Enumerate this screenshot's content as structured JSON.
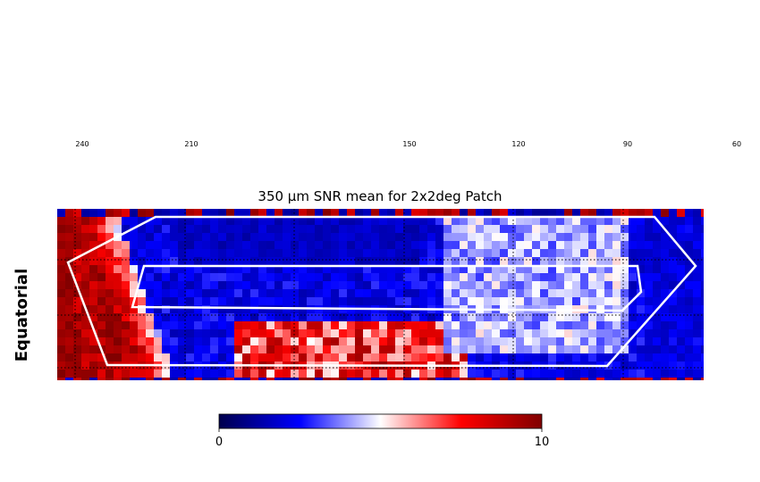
{
  "chart_data": {
    "type": "heatmap",
    "title": "350 μm SNR mean for 2x2deg Patch",
    "side_label": "Equatorial",
    "ra_ticks": [
      {
        "label": "240",
        "value": 240
      },
      {
        "label": "210",
        "value": 210
      },
      {
        "label": "150",
        "value": 150
      },
      {
        "label": "120",
        "value": 120
      },
      {
        "label": "90",
        "value": 90
      },
      {
        "label": "60",
        "value": 60
      }
    ],
    "colorbar": {
      "min": 0,
      "max": 10,
      "min_label": "0",
      "max_label": "10",
      "colormap": "seismic",
      "colors": [
        "#00004c",
        "#0000ff",
        "#ffffff",
        "#ff0000",
        "#800000"
      ]
    },
    "grid": true,
    "outline_color": "#ffffff",
    "grid_line_style": "dotted"
  }
}
